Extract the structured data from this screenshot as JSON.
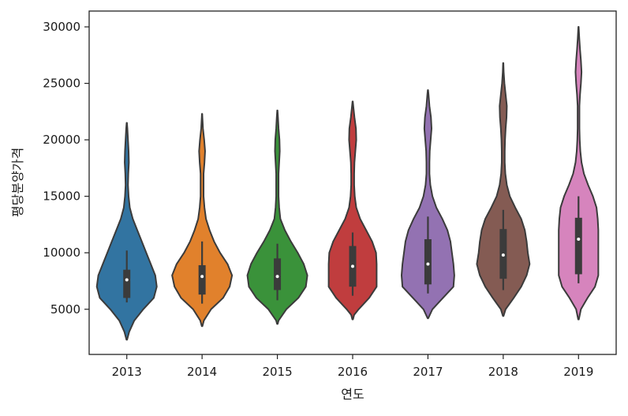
{
  "chart_data": {
    "type": "violin",
    "xlabel": "연도",
    "ylabel": "평당분양가격",
    "ylim": [
      1000,
      31400
    ],
    "yticks": [
      5000,
      10000,
      15000,
      20000,
      25000,
      30000
    ],
    "categories": [
      "2013",
      "2014",
      "2015",
      "2016",
      "2017",
      "2018",
      "2019"
    ],
    "colors": [
      "#3274a1",
      "#e1812c",
      "#3a923a",
      "#c03d3e",
      "#9372b2",
      "#845b53",
      "#d684bd"
    ],
    "violins": [
      {
        "category": "2013",
        "min": 2300,
        "max": 21500,
        "q1": 6000,
        "median": 7600,
        "q3": 8500,
        "whisker_low": 5600,
        "whisker_high": 10200,
        "profile": [
          [
            2300,
            0.01
          ],
          [
            3000,
            0.08
          ],
          [
            4000,
            0.25
          ],
          [
            5000,
            0.55
          ],
          [
            6000,
            0.9
          ],
          [
            7000,
            1.0
          ],
          [
            8000,
            0.95
          ],
          [
            9000,
            0.8
          ],
          [
            10000,
            0.65
          ],
          [
            11000,
            0.5
          ],
          [
            12000,
            0.35
          ],
          [
            13000,
            0.2
          ],
          [
            14000,
            0.1
          ],
          [
            15000,
            0.06
          ],
          [
            16000,
            0.04
          ],
          [
            17000,
            0.05
          ],
          [
            18000,
            0.07
          ],
          [
            19000,
            0.06
          ],
          [
            20000,
            0.04
          ],
          [
            21000,
            0.02
          ],
          [
            21500,
            0.005
          ]
        ]
      },
      {
        "category": "2014",
        "min": 3500,
        "max": 22300,
        "q1": 6300,
        "median": 7900,
        "q3": 8900,
        "whisker_low": 5500,
        "whisker_high": 11000,
        "profile": [
          [
            3500,
            0.01
          ],
          [
            4000,
            0.06
          ],
          [
            5000,
            0.3
          ],
          [
            6000,
            0.7
          ],
          [
            7000,
            0.92
          ],
          [
            8000,
            1.0
          ],
          [
            9000,
            0.85
          ],
          [
            10000,
            0.6
          ],
          [
            11000,
            0.4
          ],
          [
            12000,
            0.25
          ],
          [
            13000,
            0.13
          ],
          [
            14000,
            0.08
          ],
          [
            15000,
            0.05
          ],
          [
            16000,
            0.05
          ],
          [
            17000,
            0.05
          ],
          [
            18000,
            0.08
          ],
          [
            19000,
            0.1
          ],
          [
            20000,
            0.07
          ],
          [
            21000,
            0.03
          ],
          [
            22000,
            0.01
          ],
          [
            22300,
            0.005
          ]
        ]
      },
      {
        "category": "2015",
        "min": 3700,
        "max": 22600,
        "q1": 6700,
        "median": 7900,
        "q3": 9500,
        "whisker_low": 5800,
        "whisker_high": 10800,
        "profile": [
          [
            3700,
            0.01
          ],
          [
            4000,
            0.04
          ],
          [
            5000,
            0.3
          ],
          [
            6000,
            0.7
          ],
          [
            7000,
            0.95
          ],
          [
            8000,
            1.0
          ],
          [
            9000,
            0.88
          ],
          [
            10000,
            0.68
          ],
          [
            11000,
            0.45
          ],
          [
            12000,
            0.25
          ],
          [
            13000,
            0.1
          ],
          [
            14000,
            0.06
          ],
          [
            15000,
            0.04
          ],
          [
            16000,
            0.04
          ],
          [
            17000,
            0.04
          ],
          [
            18000,
            0.06
          ],
          [
            19000,
            0.08
          ],
          [
            20000,
            0.07
          ],
          [
            21000,
            0.04
          ],
          [
            22000,
            0.02
          ],
          [
            22600,
            0.005
          ]
        ]
      },
      {
        "category": "2016",
        "min": 4100,
        "max": 23400,
        "q1": 7000,
        "median": 8800,
        "q3": 10600,
        "whisker_low": 6200,
        "whisker_high": 11800,
        "profile": [
          [
            4100,
            0.01
          ],
          [
            4500,
            0.05
          ],
          [
            5000,
            0.2
          ],
          [
            6000,
            0.55
          ],
          [
            7000,
            0.8
          ],
          [
            8000,
            0.8
          ],
          [
            9000,
            0.8
          ],
          [
            10000,
            0.78
          ],
          [
            11000,
            0.65
          ],
          [
            12000,
            0.45
          ],
          [
            13000,
            0.25
          ],
          [
            14000,
            0.12
          ],
          [
            15000,
            0.07
          ],
          [
            16000,
            0.05
          ],
          [
            17000,
            0.05
          ],
          [
            18000,
            0.06
          ],
          [
            19000,
            0.09
          ],
          [
            20000,
            0.12
          ],
          [
            21000,
            0.11
          ],
          [
            22000,
            0.06
          ],
          [
            23000,
            0.02
          ],
          [
            23400,
            0.005
          ]
        ]
      },
      {
        "category": "2017",
        "min": 4200,
        "max": 24400,
        "q1": 7200,
        "median": 9000,
        "q3": 11200,
        "whisker_low": 6400,
        "whisker_high": 13200,
        "profile": [
          [
            4200,
            0.01
          ],
          [
            5000,
            0.15
          ],
          [
            6000,
            0.5
          ],
          [
            7000,
            0.85
          ],
          [
            8000,
            0.88
          ],
          [
            9000,
            0.85
          ],
          [
            10000,
            0.8
          ],
          [
            11000,
            0.75
          ],
          [
            12000,
            0.65
          ],
          [
            13000,
            0.48
          ],
          [
            14000,
            0.28
          ],
          [
            15000,
            0.15
          ],
          [
            16000,
            0.08
          ],
          [
            17000,
            0.05
          ],
          [
            18000,
            0.05
          ],
          [
            19000,
            0.06
          ],
          [
            20000,
            0.09
          ],
          [
            21000,
            0.12
          ],
          [
            22000,
            0.1
          ],
          [
            23000,
            0.05
          ],
          [
            24000,
            0.02
          ],
          [
            24400,
            0.005
          ]
        ]
      },
      {
        "category": "2018",
        "min": 4400,
        "max": 26800,
        "q1": 7700,
        "median": 9800,
        "q3": 12100,
        "whisker_low": 6700,
        "whisker_high": 13800,
        "profile": [
          [
            4400,
            0.01
          ],
          [
            5000,
            0.08
          ],
          [
            6000,
            0.35
          ],
          [
            7000,
            0.6
          ],
          [
            8000,
            0.78
          ],
          [
            9000,
            0.88
          ],
          [
            10000,
            0.82
          ],
          [
            11000,
            0.78
          ],
          [
            12000,
            0.72
          ],
          [
            13000,
            0.6
          ],
          [
            14000,
            0.4
          ],
          [
            15000,
            0.22
          ],
          [
            16000,
            0.12
          ],
          [
            17000,
            0.07
          ],
          [
            18000,
            0.05
          ],
          [
            19000,
            0.05
          ],
          [
            20000,
            0.06
          ],
          [
            21000,
            0.08
          ],
          [
            22000,
            0.11
          ],
          [
            23000,
            0.12
          ],
          [
            24000,
            0.08
          ],
          [
            25000,
            0.04
          ],
          [
            26000,
            0.015
          ],
          [
            26800,
            0.005
          ]
        ]
      },
      {
        "category": "2019",
        "min": 4100,
        "max": 30000,
        "q1": 8100,
        "median": 11200,
        "q3": 13100,
        "whisker_low": 7300,
        "whisker_high": 15000,
        "profile": [
          [
            4100,
            0.01
          ],
          [
            5000,
            0.08
          ],
          [
            6000,
            0.3
          ],
          [
            7000,
            0.55
          ],
          [
            8000,
            0.66
          ],
          [
            9000,
            0.66
          ],
          [
            10000,
            0.66
          ],
          [
            11000,
            0.66
          ],
          [
            12000,
            0.66
          ],
          [
            13000,
            0.64
          ],
          [
            14000,
            0.6
          ],
          [
            15000,
            0.48
          ],
          [
            16000,
            0.32
          ],
          [
            17000,
            0.18
          ],
          [
            18000,
            0.1
          ],
          [
            19000,
            0.06
          ],
          [
            20000,
            0.04
          ],
          [
            21000,
            0.03
          ],
          [
            22000,
            0.03
          ],
          [
            23000,
            0.03
          ],
          [
            24000,
            0.05
          ],
          [
            25000,
            0.08
          ],
          [
            26000,
            0.1
          ],
          [
            27000,
            0.08
          ],
          [
            28000,
            0.05
          ],
          [
            29000,
            0.025
          ],
          [
            30000,
            0.005
          ]
        ]
      }
    ]
  }
}
